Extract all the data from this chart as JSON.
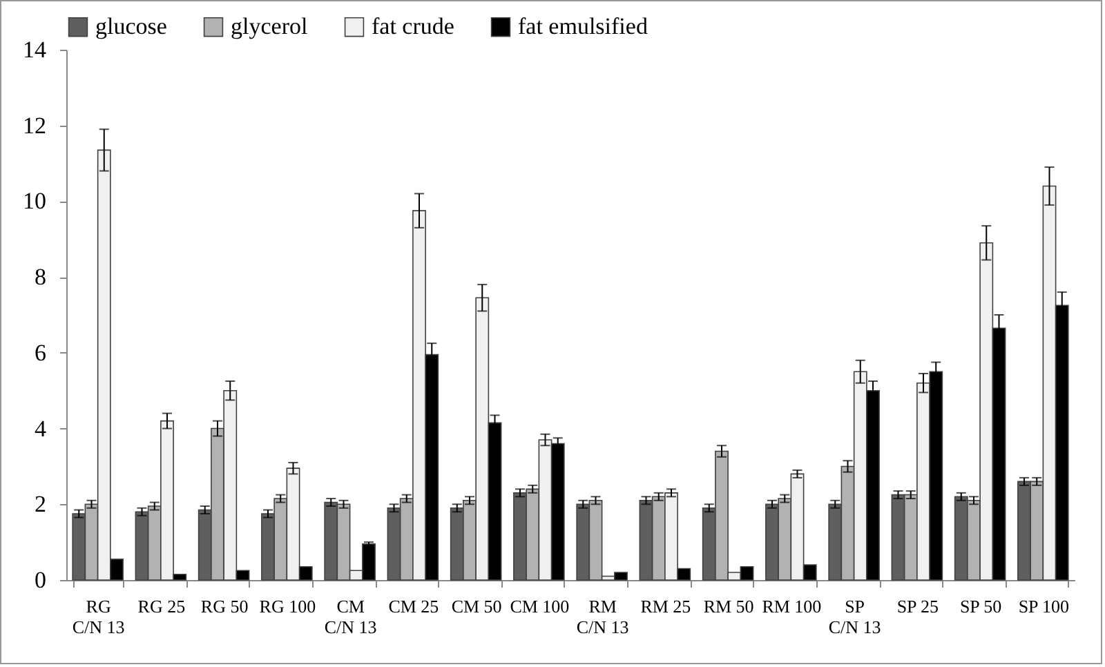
{
  "chart_data": {
    "type": "bar",
    "categories": [
      "RG C/N 13",
      "RG 25",
      "RG 50",
      "RG 100",
      "CM C/N 13",
      "CM 25",
      "CM 50",
      "CM 100",
      "RM C/N 13",
      "RM 25",
      "RM 50",
      "RM 100",
      "SP C/N 13",
      "SP 25",
      "SP 50",
      "SP 100"
    ],
    "series": [
      {
        "name": "glucose",
        "color": "#5f5f5f",
        "values": [
          1.75,
          1.8,
          1.85,
          1.75,
          2.05,
          1.9,
          1.9,
          2.3,
          2.0,
          2.1,
          1.9,
          2.0,
          2.0,
          2.25,
          2.2,
          2.6
        ],
        "errors": [
          0.1,
          0.1,
          0.1,
          0.1,
          0.1,
          0.1,
          0.1,
          0.1,
          0.1,
          0.1,
          0.1,
          0.1,
          0.1,
          0.1,
          0.1,
          0.1
        ]
      },
      {
        "name": "glycerol",
        "color": "#b2b2b2",
        "values": [
          2.0,
          1.95,
          4.0,
          2.15,
          2.0,
          2.15,
          2.1,
          2.4,
          2.1,
          2.2,
          3.4,
          2.15,
          3.0,
          2.25,
          2.1,
          2.6
        ],
        "errors": [
          0.1,
          0.1,
          0.2,
          0.1,
          0.1,
          0.1,
          0.1,
          0.1,
          0.1,
          0.1,
          0.15,
          0.1,
          0.15,
          0.1,
          0.1,
          0.1
        ]
      },
      {
        "name": "fat crude",
        "color": "#f0f0f0",
        "values": [
          11.35,
          4.2,
          5.0,
          2.95,
          0.25,
          9.75,
          7.45,
          3.7,
          0.1,
          2.3,
          0.2,
          2.8,
          5.5,
          5.2,
          8.9,
          10.4
        ],
        "errors": [
          0.55,
          0.2,
          0.25,
          0.15,
          null,
          0.45,
          0.35,
          0.15,
          null,
          0.1,
          null,
          0.1,
          0.3,
          0.25,
          0.45,
          0.5
        ]
      },
      {
        "name": "fat emulsified",
        "color": "#000000",
        "values": [
          0.55,
          0.15,
          0.25,
          0.35,
          0.95,
          5.95,
          4.15,
          3.6,
          0.2,
          0.3,
          0.35,
          0.4,
          5.0,
          5.5,
          6.65,
          7.25
        ],
        "errors": [
          null,
          null,
          null,
          null,
          0.05,
          0.3,
          0.2,
          0.15,
          null,
          null,
          null,
          null,
          0.25,
          0.25,
          0.35,
          0.35
        ]
      }
    ],
    "ylim": [
      0,
      14
    ],
    "yticks": [
      0,
      2,
      4,
      6,
      8,
      10,
      12,
      14
    ],
    "grid": false,
    "legend": "top"
  }
}
